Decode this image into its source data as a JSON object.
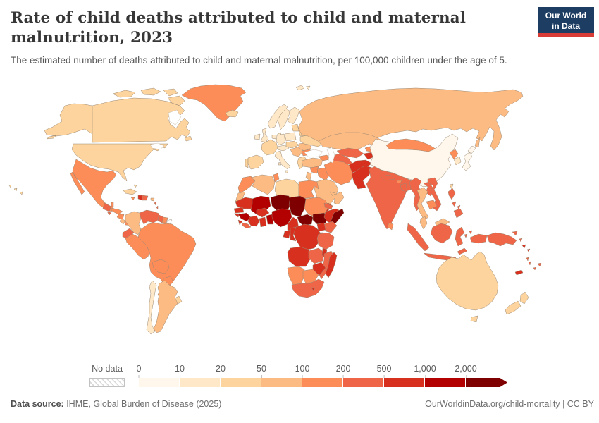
{
  "header": {
    "title": "Rate of child deaths attributed to child and maternal malnutrition, 2023",
    "subtitle": "The estimated number of deaths attributed to child and maternal malnutrition, per 100,000 children under the age of 5.",
    "logo": {
      "line1": "Our World",
      "line2": "in Data",
      "bg_color": "#1d3d63",
      "accent_color": "#d93c36"
    }
  },
  "chart_data": {
    "type": "choropleth_world_map",
    "title": "Rate of child deaths attributed to child and maternal malnutrition",
    "year": "2023",
    "unit": "deaths per 100,000 children under the age of 5",
    "legend": {
      "no_data_label": "No data",
      "ticks": [
        "0",
        "10",
        "20",
        "50",
        "100",
        "200",
        "500",
        "1,000",
        "2,000"
      ],
      "bins": [
        "0-10",
        "10-20",
        "20-50",
        "50-100",
        "100-200",
        "200-500",
        "500-1,000",
        "1,000-2,000",
        "2,000+"
      ],
      "bin_colors": [
        "#fff7ec",
        "#fee8c8",
        "#fdd49e",
        "#fdbb84",
        "#fc8d59",
        "#ef6548",
        "#d7301f",
        "#b30000",
        "#7f0000"
      ]
    },
    "region_colors": {
      "canada": "#fdd49e",
      "united-states": "#fdd49e",
      "greenland": "#fc8d59",
      "iceland": "#fdd49e",
      "mexico": "#fc8d59",
      "guatemala": "#ef6548",
      "belize": "#fc8d59",
      "honduras": "#fc8d59",
      "el-salvador": "#ef6548",
      "nicaragua": "#fc8d59",
      "costa-rica": "#fdbb84",
      "panama": "#fc8d59",
      "cuba": "#fdd49e",
      "jamaica": "#fc8d59",
      "haiti": "#d7301f",
      "dominican-republic": "#ef6548",
      "puerto-rico": "#fdbb84",
      "bahamas": "#fdd49e",
      "lesser-antilles": "#ef6548",
      "colombia": "#fdbb84",
      "venezuela": "#ef6548",
      "guyana": "#ef6548",
      "suriname": "#fc8d59",
      "french-guiana": "no-data",
      "ecuador": "#ef6548",
      "peru": "#fc8d59",
      "brazil": "#fc8d59",
      "bolivia": "#fc8d59",
      "paraguay": "#fc8d59",
      "chile": "#fee8c8",
      "argentina": "#fdbb84",
      "uruguay": "#fdd49e",
      "united-kingdom": "#fee8c8",
      "ireland": "#fee8c8",
      "norway": "#fee8c8",
      "sweden": "#fee8c8",
      "finland": "#fee8c8",
      "denmark": "#fee8c8",
      "baltics": "#fdd49e",
      "belarus": "#fdd49e",
      "poland": "#fee8c8",
      "germany": "#fee8c8",
      "benelux": "#fee8c8",
      "france": "#fdd49e",
      "spain": "#fdd49e",
      "portugal": "#fdd49e",
      "italy": "#fee8c8",
      "alpine-states": "#fee8c8",
      "czech-hungary": "#fdd49e",
      "balkans": "#fdbb84",
      "romania": "#fdbb84",
      "bulgaria": "#fc8d59",
      "greece": "#fdd49e",
      "ukraine": "#fdd49e",
      "svalbard": "#fee8c8",
      "russia": "#fdbb84",
      "turkey": "#fdbb84",
      "caucasus": "#fc8d59",
      "syria": "#fc8d59",
      "levant": "#fdbb84",
      "iraq": "#fc8d59",
      "saudi-arabia": "#fdbb84",
      "yemen": "#d7301f",
      "oman": "#fdbb84",
      "uae": "#fdbb84",
      "iran": "#fc8d59",
      "kazakhstan": "#fdbb84",
      "uzbekistan": "#ef6548",
      "turkmenistan": "#ef6548",
      "kyrgyzstan": "#fc8d59",
      "tajikistan": "#d7301f",
      "afghanistan": "#d7301f",
      "pakistan": "#d7301f",
      "india": "#ef6548",
      "nepal": "#ef6548",
      "bhutan": "#fc8d59",
      "bangladesh": "#ef6548",
      "sri-lanka": "#fc8d59",
      "china": "#fff7ec",
      "mongolia": "#fc8d59",
      "north-korea": "#fc8d59",
      "south-korea": "#fee8c8",
      "japan": "#fff7ec",
      "taiwan": "#fdd49e",
      "myanmar": "#ef6548",
      "thailand": "#fdbb84",
      "laos": "#ef6548",
      "vietnam": "#ef6548",
      "cambodia": "#fc8d59",
      "malaysia": "#fdbb84",
      "indonesia": "#ef6548",
      "timor": "#ef6548",
      "philippines": "#ef6548",
      "papua-new-guinea": "#ef6548",
      "solomon-islands": "#d7301f",
      "vanuatu": "#ef6548",
      "fiji": "#ef6548",
      "new-caledonia": "#d7301f",
      "australia": "#fdd49e",
      "new-zealand": "#fdd49e",
      "morocco": "#fc8d59",
      "western-sahara": "#fdbb84",
      "algeria": "#fdbb84",
      "tunisia": "#fc8d59",
      "libya": "#fdd49e",
      "egypt": "#fc8d59",
      "mauritania": "#d7301f",
      "mali": "#b30000",
      "niger": "#7f0000",
      "chad": "#7f0000",
      "sudan": "#fc8d59",
      "eritrea": "#ef6548",
      "djibouti": "#ef6548",
      "senegal": "#d7301f",
      "guinea": "#b30000",
      "sierra-leone": "#d7301f",
      "liberia": "#ef6548",
      "ivory-coast": "#d7301f",
      "burkina-faso": "#d7301f",
      "ghana": "#d7301f",
      "togo-benin": "#b30000",
      "nigeria": "#b30000",
      "cameroon": "#d7301f",
      "central-african-republic": "#7f0000",
      "south-sudan": "#7f0000",
      "ethiopia": "#d7301f",
      "somalia": "#7f0000",
      "kenya": "#ef6548",
      "uganda": "#d7301f",
      "rwanda-burundi": "#d7301f",
      "drc": "#d7301f",
      "congo": "#d7301f",
      "gabon": "#d7301f",
      "tanzania": "#ef6548",
      "angola": "#d7301f",
      "zambia": "#ef6548",
      "malawi": "#d7301f",
      "mozambique": "#ef6548",
      "zimbabwe": "#d7301f",
      "namibia": "#fc8d59",
      "botswana": "#fc8d59",
      "south-africa": "#ef6548",
      "lesotho": "#d7301f",
      "madagascar": "#d7301f"
    }
  },
  "footer": {
    "source_label": "Data source:",
    "source_text": " IHME, Global Burden of Disease (2025)",
    "credit": "OurWorldinData.org/child-mortality | CC BY"
  }
}
